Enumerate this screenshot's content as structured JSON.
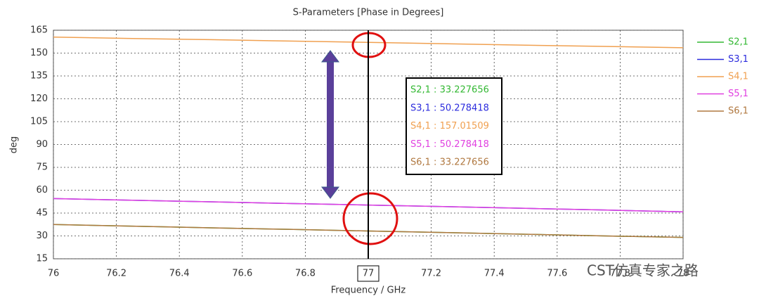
{
  "chart_data": {
    "type": "line",
    "title": "S-Parameters [Phase in Degrees]",
    "x_label": "Frequency / GHz",
    "y_label": "deg",
    "x": [
      76,
      76.25,
      76.5,
      76.75,
      77,
      77.25,
      77.5,
      77.75,
      78
    ],
    "series": [
      {
        "name": "S2,1",
        "color": "#33b833",
        "values": [
          37.5,
          36.4,
          35.3,
          34.3,
          33.227656,
          32.2,
          31.1,
          30.0,
          29
        ]
      },
      {
        "name": "S3,1",
        "color": "#2b2bdd",
        "values": [
          54.5,
          53.4,
          52.4,
          51.3,
          50.278418,
          49.2,
          48.1,
          47.0,
          45.8
        ]
      },
      {
        "name": "S4,1",
        "color": "#f0a050",
        "values": [
          160.5,
          159.6,
          158.8,
          157.9,
          157.01509,
          156.1,
          155.2,
          154.4,
          153.5
        ]
      },
      {
        "name": "S5,1",
        "color": "#e040e0",
        "values": [
          54.5,
          53.4,
          52.4,
          51.3,
          50.278418,
          49.2,
          48.1,
          47.0,
          45.8
        ]
      },
      {
        "name": "S6,1",
        "color": "#b07840",
        "values": [
          37.5,
          36.4,
          35.3,
          34.3,
          33.227656,
          32.2,
          31.1,
          30.0,
          29
        ]
      }
    ],
    "xlim": [
      76,
      78
    ],
    "ylim": [
      15,
      165
    ],
    "xticks": [
      76,
      76.2,
      76.4,
      76.6,
      76.8,
      77.2,
      77.4,
      77.6,
      77.8,
      78
    ],
    "yticks": [
      15,
      30,
      45,
      60,
      75,
      90,
      105,
      120,
      135,
      150,
      165
    ],
    "grid": true,
    "legend": "right",
    "marker_x": 77,
    "marker_readout": [
      "S2,1 : 33.227656",
      "S3,1 : 50.278418",
      "S4,1 : 157.01509",
      "S5,1 : 50.278418",
      "S6,1 : 33.227656"
    ],
    "watermark": "CST仿真专家之路"
  }
}
